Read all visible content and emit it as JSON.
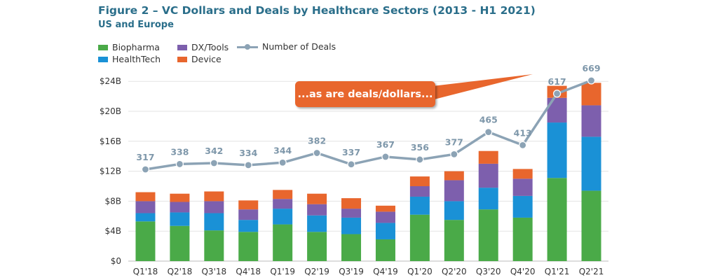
{
  "title": "Figure 2 – VC Dollars and Deals by Healthcare Sectors (2013 - H1 2021)",
  "subtitle": "US and Europe",
  "legend": {
    "biopharma": "Biopharma",
    "dxtools": "DX/Tools",
    "deals": "Number of Deals",
    "healthtech": "HealthTech",
    "device": "Device"
  },
  "callout": "...as are deals/dollars...",
  "colors": {
    "biopharma": "#4aaa48",
    "healthtech": "#1a91d6",
    "dxtools": "#7d5fad",
    "device": "#e8662d",
    "deals": "#8ca3b5",
    "deal_labels": "#7e97aa"
  },
  "chart_data": {
    "type": "bar",
    "stacked": true,
    "categories": [
      "Q1'18",
      "Q2'18",
      "Q3'18",
      "Q4'18",
      "Q1'19",
      "Q2'19",
      "Q3'19",
      "Q4'19",
      "Q1'20",
      "Q2'20",
      "Q3'20",
      "Q4'20",
      "Q1'21",
      "Q2'21"
    ],
    "series": [
      {
        "name": "Biopharma",
        "values": [
          5.3,
          4.7,
          4.1,
          3.9,
          4.9,
          3.9,
          3.6,
          2.9,
          6.2,
          5.5,
          6.9,
          5.8,
          11.1,
          9.4
        ]
      },
      {
        "name": "HealthTech",
        "values": [
          1.1,
          1.8,
          2.3,
          1.6,
          2.1,
          2.2,
          2.2,
          2.2,
          2.4,
          2.5,
          2.9,
          2.9,
          7.4,
          7.2
        ]
      },
      {
        "name": "DX/Tools",
        "values": [
          1.6,
          1.4,
          1.6,
          1.4,
          1.3,
          1.5,
          1.2,
          1.5,
          1.4,
          2.8,
          3.2,
          2.3,
          3.3,
          4.2
        ]
      },
      {
        "name": "Device",
        "values": [
          1.2,
          1.1,
          1.3,
          1.2,
          1.2,
          1.4,
          1.4,
          0.8,
          1.3,
          1.2,
          1.7,
          1.3,
          1.6,
          3.0
        ]
      }
    ],
    "line": {
      "name": "Number of Deals",
      "values": [
        317,
        338,
        342,
        334,
        344,
        382,
        337,
        367,
        356,
        377,
        465,
        413,
        617,
        669
      ]
    },
    "yticks": [
      "$0",
      "$4B",
      "$8B",
      "$12B",
      "$16B",
      "$20B",
      "$24B"
    ],
    "ylim": [
      0,
      26
    ]
  }
}
